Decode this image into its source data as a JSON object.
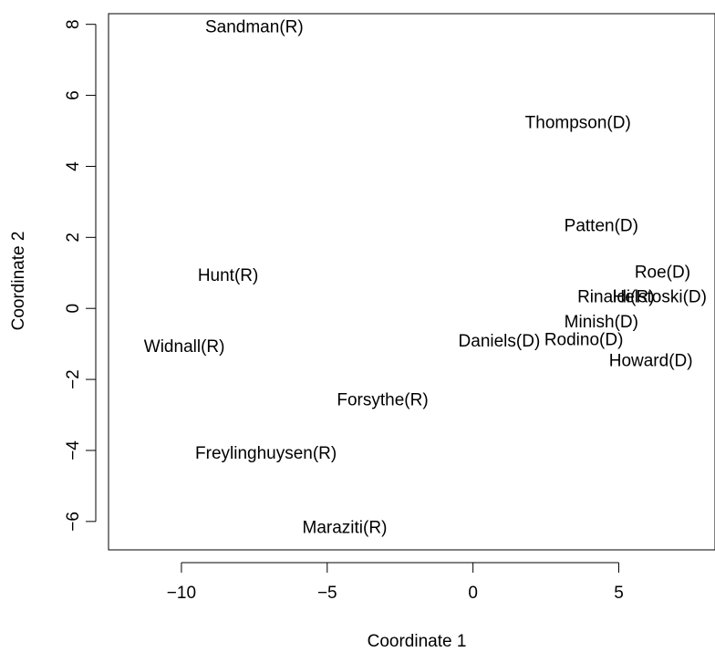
{
  "chart_data": {
    "type": "scatter",
    "title": "",
    "xlabel": "Coordinate 1",
    "ylabel": "Coordinate 2",
    "xlim": [
      -12.5,
      8.3
    ],
    "ylim": [
      -6.8,
      8.3
    ],
    "xticks": [
      -10,
      -5,
      0,
      5
    ],
    "yticks": [
      -6,
      -4,
      -2,
      0,
      2,
      4,
      6,
      8
    ],
    "xtick_labels": [
      "−10",
      "−5",
      "0",
      "5"
    ],
    "ytick_labels": [
      "−6",
      "−4",
      "−2",
      "0",
      "2",
      "4",
      "6",
      "8"
    ],
    "grid": false,
    "points": [
      {
        "label": "Sandman(R)",
        "x": -7.5,
        "y": 7.9
      },
      {
        "label": "Thompson(D)",
        "x": 3.6,
        "y": 5.2
      },
      {
        "label": "Patten(D)",
        "x": 4.4,
        "y": 2.3
      },
      {
        "label": "Hunt(R)",
        "x": -8.4,
        "y": 0.9
      },
      {
        "label": "Roe(D)",
        "x": 6.5,
        "y": 1.0
      },
      {
        "label": "Rinaldi(R)",
        "x": 4.9,
        "y": 0.3
      },
      {
        "label": "Helstoski(D)",
        "x": 6.4,
        "y": 0.3
      },
      {
        "label": "Minish(D)",
        "x": 4.4,
        "y": -0.4
      },
      {
        "label": "Widnall(R)",
        "x": -9.9,
        "y": -1.1
      },
      {
        "label": "Daniels(D)",
        "x": 0.9,
        "y": -0.95
      },
      {
        "label": "Rodino(D)",
        "x": 3.8,
        "y": -0.9
      },
      {
        "label": "Howard(D)",
        "x": 6.1,
        "y": -1.5
      },
      {
        "label": "Forsythe(R)",
        "x": -3.1,
        "y": -2.6
      },
      {
        "label": "Freylinghuysen(R)",
        "x": -7.1,
        "y": -4.1
      },
      {
        "label": "Maraziti(R)",
        "x": -4.4,
        "y": -6.2
      }
    ]
  }
}
